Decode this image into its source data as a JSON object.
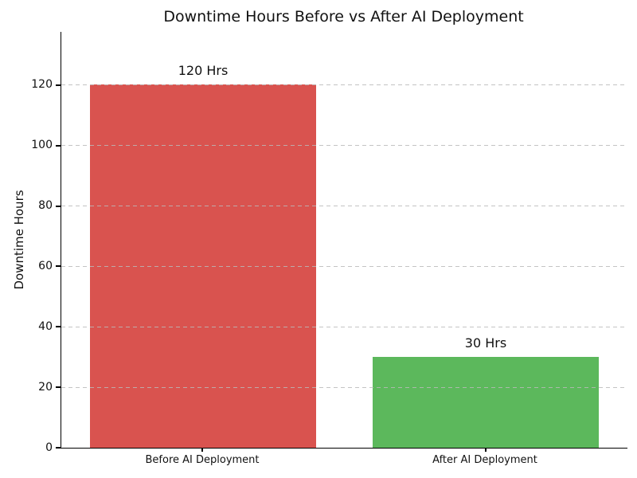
{
  "chart_data": {
    "type": "bar",
    "title": "Downtime Hours Before vs After AI Deployment",
    "xlabel": "",
    "ylabel": "Downtime Hours",
    "categories": [
      "Before AI Deployment",
      "After AI Deployment"
    ],
    "values": [
      120,
      30
    ],
    "value_labels": [
      "120 Hrs",
      "30 Hrs"
    ],
    "bar_colors": [
      "#d9534f",
      "#5cb85c"
    ],
    "y_ticks": [
      0,
      20,
      40,
      60,
      80,
      100,
      120
    ],
    "ylim": [
      0,
      137.5
    ],
    "grid": "horizontal-dashed",
    "grid_color": "#b9b9b9",
    "legend": "none",
    "spines": [
      "left",
      "bottom"
    ],
    "axis_color": "#000000",
    "text_color": "#111111",
    "background_color": "#ffffff"
  }
}
